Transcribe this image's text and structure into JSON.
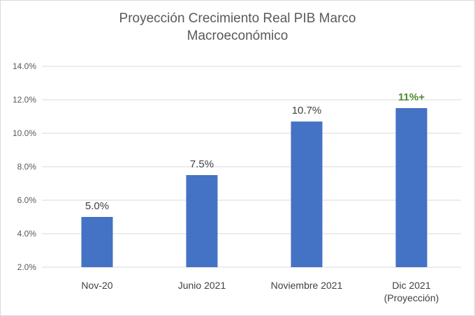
{
  "chart_data": {
    "type": "bar",
    "title_lines": [
      "Proyección Crecimiento Real PIB Marco",
      "Macroeconómico"
    ],
    "categories": [
      [
        "Nov-20"
      ],
      [
        "Junio 2021"
      ],
      [
        "Noviembre 2021"
      ],
      [
        "Dic 2021",
        "(Proyección)"
      ]
    ],
    "values": [
      5.0,
      7.5,
      10.7,
      11.5
    ],
    "data_labels": [
      "5.0%",
      "7.5%",
      "10.7%",
      "11%+"
    ],
    "data_label_colors": [
      "#404040",
      "#404040",
      "#404040",
      "#4e8a2f"
    ],
    "y_ticks": [
      "2.0%",
      "4.0%",
      "6.0%",
      "8.0%",
      "10.0%",
      "12.0%",
      "14.0%"
    ],
    "ylim": [
      2,
      14
    ],
    "grid": true,
    "bar_color": "#4472c4",
    "grid_color": "#d9d9d9"
  }
}
